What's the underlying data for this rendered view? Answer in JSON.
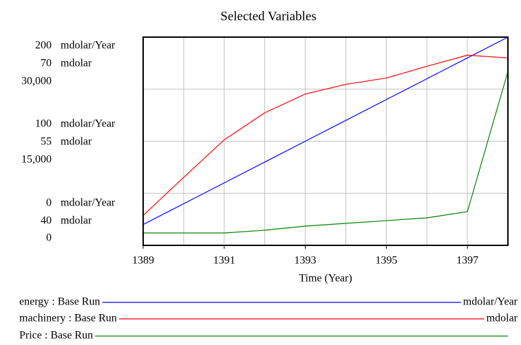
{
  "chart_data": {
    "type": "line",
    "title": "Selected Variables",
    "xlabel": "Time (Year)",
    "x": [
      1389,
      1390,
      1391,
      1392,
      1393,
      1394,
      1395,
      1396,
      1397,
      1398
    ],
    "xlim": [
      1389,
      1398
    ],
    "xticks": [
      1389,
      1391,
      1393,
      1395,
      1397
    ],
    "xgrid": [
      1390,
      1391,
      1392,
      1393,
      1394,
      1395,
      1396,
      1397
    ],
    "ygrid": [
      50,
      100,
      150
    ],
    "series": [
      {
        "name": "energy : Base Run",
        "unit": "mdolar/Year",
        "color": "#0000ff",
        "values": [
          20,
          40,
          60,
          80,
          100,
          120,
          140,
          160,
          180,
          200
        ],
        "ylim": [
          0,
          200
        ],
        "yticks": [
          0,
          100,
          200
        ]
      },
      {
        "name": "machinery : Base Run",
        "unit": "mdolar",
        "color": "#ff0000",
        "values": [
          44.3,
          49.8,
          55.2,
          59.1,
          61.8,
          63.2,
          64.1,
          65.8,
          67.4,
          67.0
        ],
        "ylim": [
          40,
          70
        ],
        "yticks": [
          40,
          55,
          70
        ]
      },
      {
        "name": "Price : Base Run",
        "color": "#008000",
        "values": [
          1780,
          1780,
          1780,
          2180,
          2770,
          3170,
          3560,
          3960,
          4850,
          25050
        ],
        "ylim": [
          0,
          30000
        ],
        "yticks": [
          0,
          {
            "value": 15000,
            "label": "15,000"
          },
          {
            "value": 30000,
            "label": "30,000"
          }
        ]
      }
    ]
  }
}
